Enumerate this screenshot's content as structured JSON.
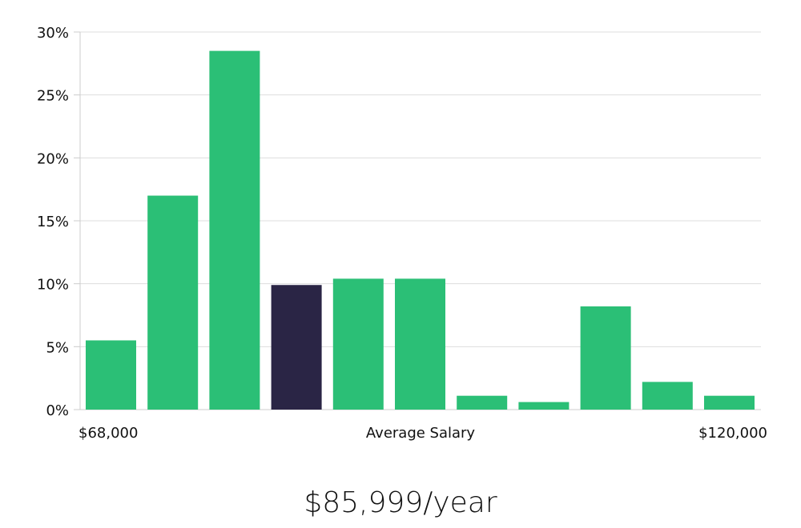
{
  "chart_data": {
    "type": "bar",
    "title": "",
    "xlabel": "Average Salary",
    "ylabel": "",
    "x_min_label": "$68,000",
    "x_max_label": "$120,000",
    "ylim": [
      0,
      30
    ],
    "y_ticks": [
      {
        "value": 0,
        "label": "0%"
      },
      {
        "value": 5,
        "label": "5%"
      },
      {
        "value": 10,
        "label": "10%"
      },
      {
        "value": 15,
        "label": "15%"
      },
      {
        "value": 20,
        "label": "20%"
      },
      {
        "value": 25,
        "label": "25%"
      },
      {
        "value": 30,
        "label": "30%"
      }
    ],
    "values": [
      5.5,
      17.0,
      28.5,
      9.9,
      10.4,
      10.4,
      1.1,
      0.6,
      8.2,
      2.2,
      1.1
    ],
    "highlight_index": 3,
    "grid": true
  },
  "colors": {
    "bar": "#2bbf76",
    "highlight": "#2a2545",
    "grid": "#dddddd",
    "axis": "#cccccc"
  },
  "headline": {
    "salary_text": "$85,999/year"
  }
}
